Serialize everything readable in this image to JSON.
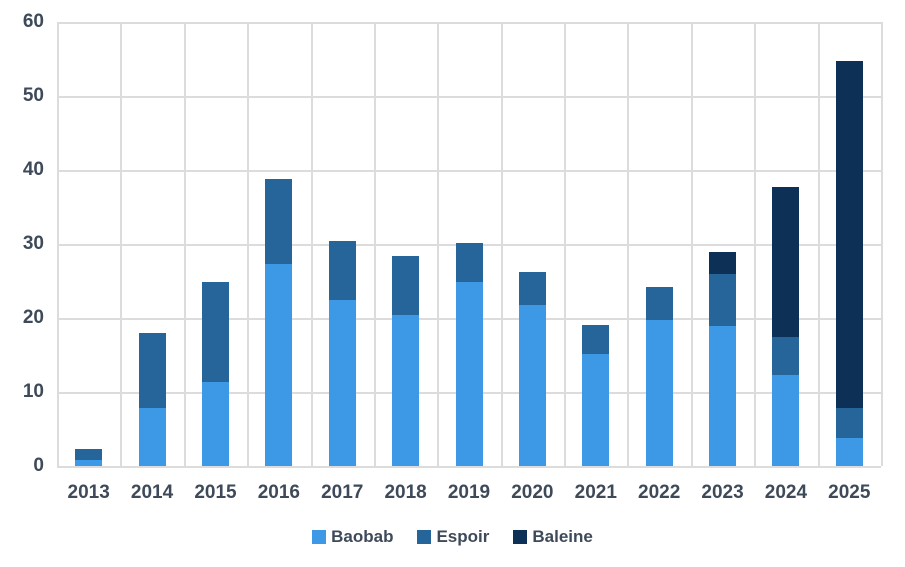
{
  "chart_data": {
    "type": "bar",
    "stacked": true,
    "title": "",
    "xlabel": "",
    "ylabel": "",
    "categories": [
      "2013",
      "2014",
      "2015",
      "2016",
      "2017",
      "2018",
      "2019",
      "2020",
      "2021",
      "2022",
      "2023",
      "2024",
      "2025"
    ],
    "series": [
      {
        "name": "Baobab",
        "color": "#3d99e5",
        "values": [
          0.8,
          7.9,
          11.4,
          27.3,
          22.4,
          20.4,
          24.9,
          21.8,
          15.1,
          19.7,
          18.9,
          12.3,
          3.8
        ]
      },
      {
        "name": "Espoir",
        "color": "#266599",
        "values": [
          1.5,
          10.1,
          13.5,
          11.5,
          8.0,
          8.0,
          5.3,
          4.4,
          3.9,
          4.5,
          7.1,
          5.1,
          4.1
        ]
      },
      {
        "name": "Baleine",
        "color": "#0d3056",
        "values": [
          0,
          0,
          0,
          0,
          0,
          0,
          0,
          0,
          0,
          0,
          2.9,
          20.3,
          46.8
        ]
      }
    ],
    "totals": [
      2.3,
      18.0,
      24.9,
      38.8,
      30.4,
      28.4,
      30.2,
      26.2,
      19.0,
      24.2,
      28.9,
      37.7,
      54.7
    ],
    "ylim": [
      0,
      60
    ],
    "yticks": [
      0,
      10,
      20,
      30,
      40,
      50,
      60
    ],
    "grid": true,
    "gridline_color": "#dcdcdc",
    "axis_label_color": "#3e4a59",
    "legend_position": "bottom"
  }
}
